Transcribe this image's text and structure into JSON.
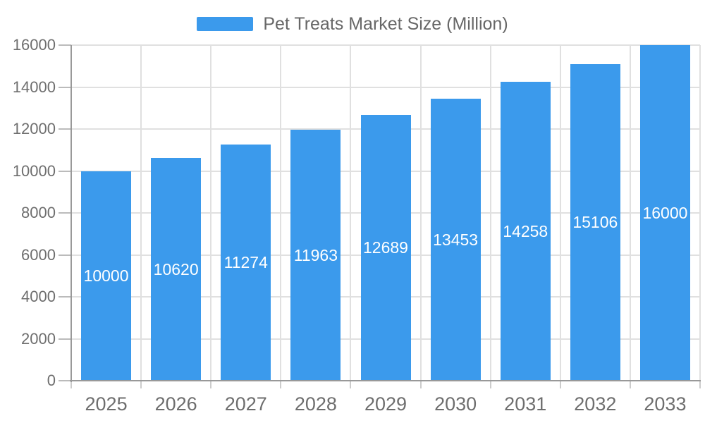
{
  "chart_data": {
    "type": "bar",
    "title": "Pet Treats Market Size (Million)",
    "legend": "Pet Treats Market Size (Million)",
    "legend_position": "top-center",
    "categories": [
      "2025",
      "2026",
      "2027",
      "2028",
      "2029",
      "2030",
      "2031",
      "2032",
      "2033"
    ],
    "series": [
      {
        "name": "Pet Treats Market Size (Million)",
        "values": [
          10000,
          10620,
          11274,
          11963,
          12689,
          13453,
          14258,
          15106,
          16000
        ]
      }
    ],
    "value_labels_shown": true,
    "xlabel": "",
    "ylabel": "",
    "ylim": [
      0,
      16000
    ],
    "ytick_step": 2000,
    "ytick_labels": [
      "0",
      "2000",
      "4000",
      "6000",
      "8000",
      "10000",
      "12000",
      "14000",
      "16000"
    ],
    "grid": true,
    "colors": {
      "bar": "#3b9aec",
      "value_label": "#ffffff",
      "axis_label": "#6e6e6e",
      "legend_text": "#676767",
      "grid_line": "#e0e0e0",
      "axis_line": "#999999",
      "background": "#ffffff"
    }
  }
}
